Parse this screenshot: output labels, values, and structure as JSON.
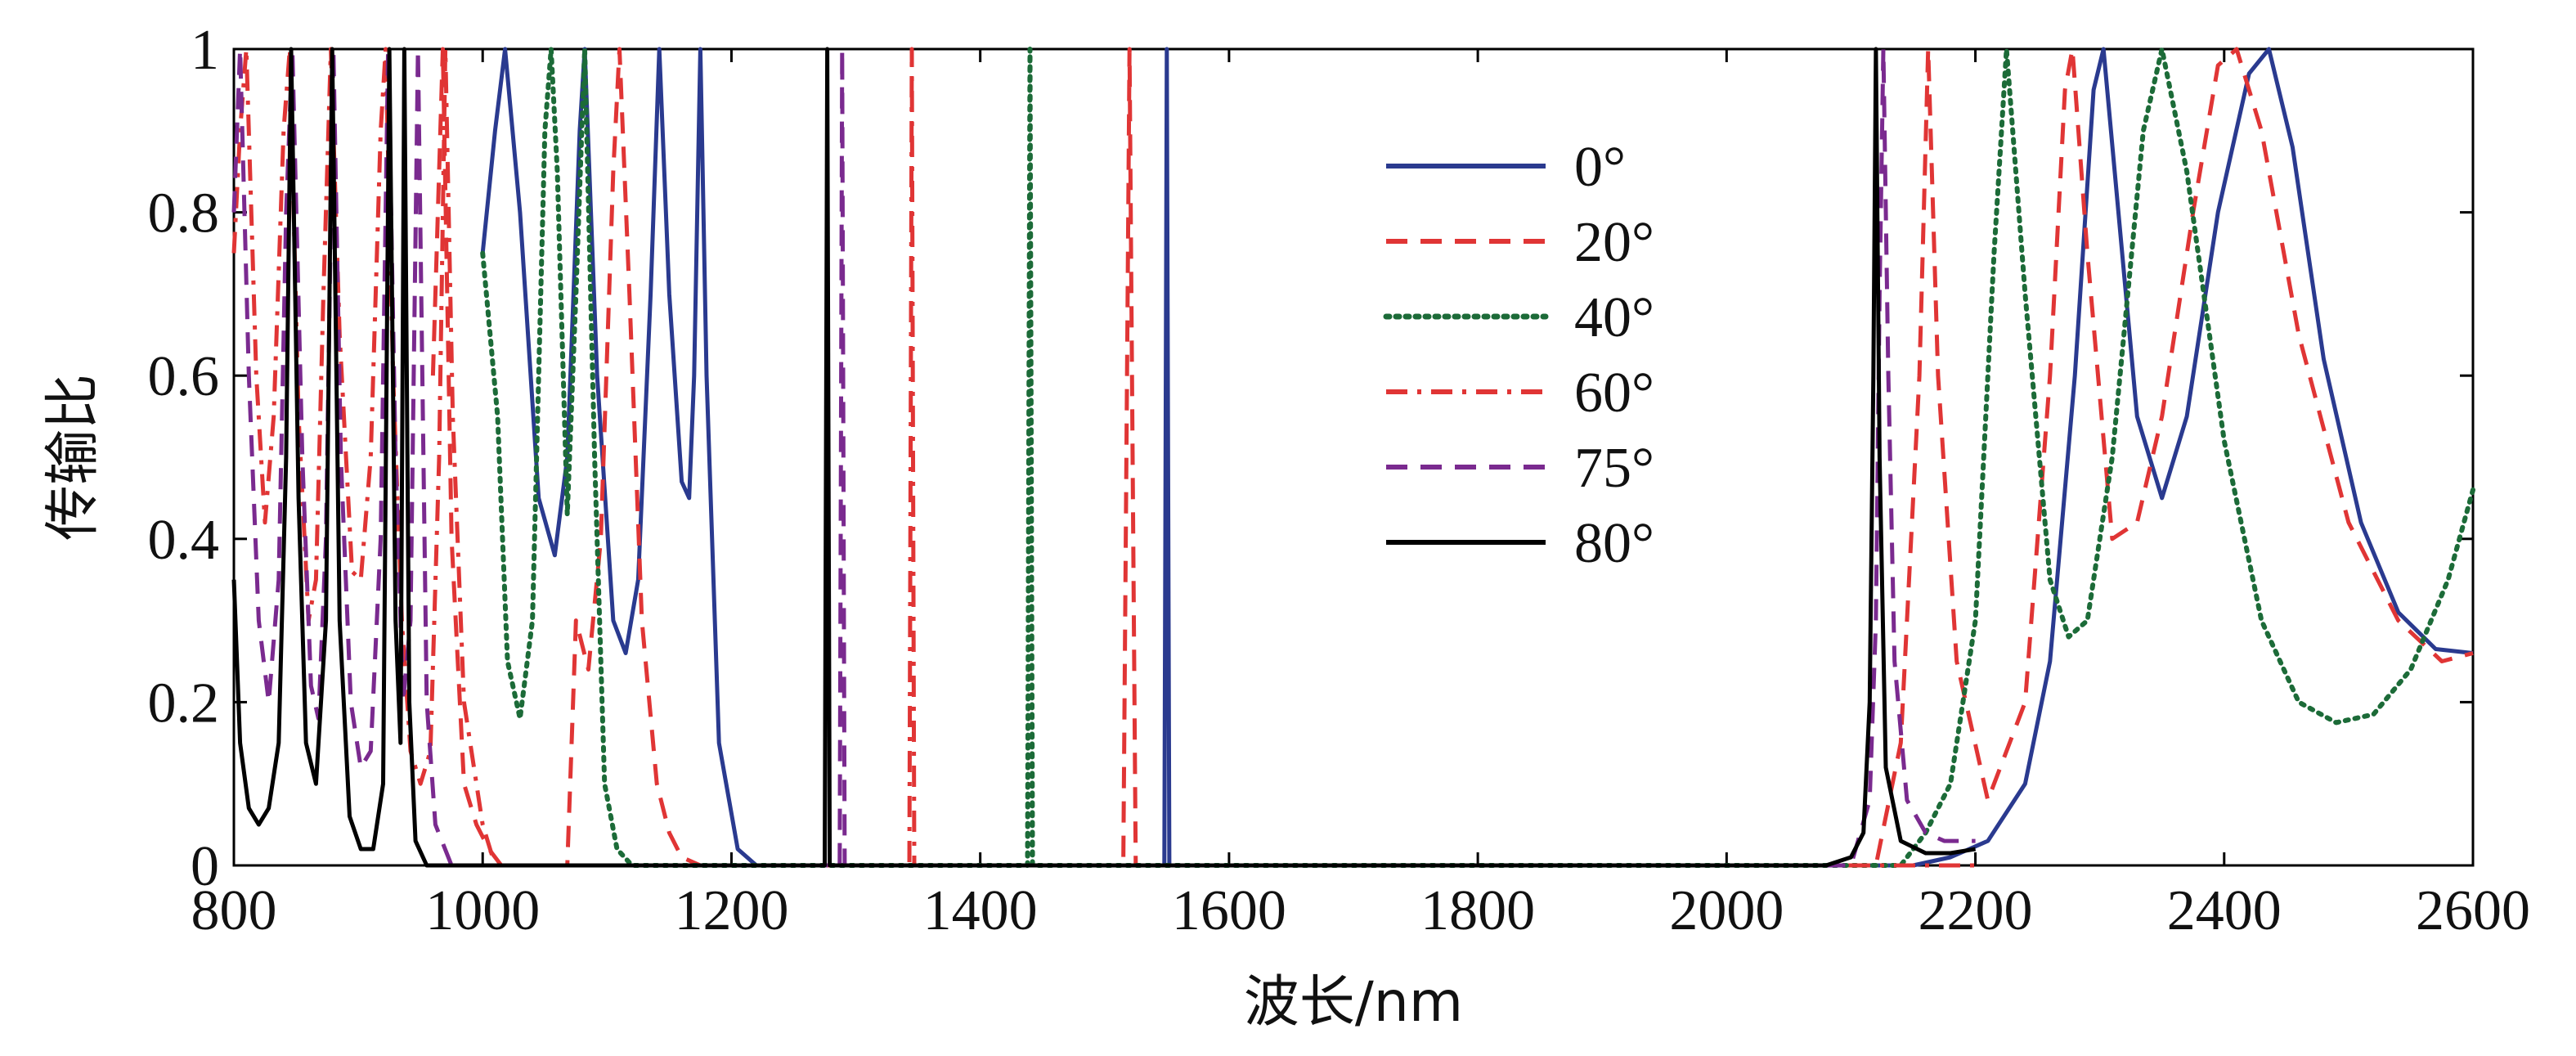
{
  "chart_data": {
    "type": "line",
    "title": "",
    "xlabel": "波长/nm",
    "ylabel": "传输比",
    "xlim": [
      800,
      2600
    ],
    "ylim": [
      0,
      1
    ],
    "xticks": [
      "800",
      "1000",
      "1200",
      "1400",
      "1600",
      "1800",
      "2000",
      "2200",
      "2400",
      "2600"
    ],
    "yticks": [
      "0",
      "0.2",
      "0.4",
      "0.6",
      "0.8",
      "1"
    ],
    "grid": false,
    "legend_position": "top-center",
    "series": [
      {
        "name": "0°",
        "color": "#2a3a8f",
        "dash": "solid",
        "points": [
          [
            1000,
            0.75
          ],
          [
            1010,
            0.9
          ],
          [
            1018,
            1.0
          ],
          [
            1030,
            0.8
          ],
          [
            1045,
            0.45
          ],
          [
            1058,
            0.38
          ],
          [
            1068,
            0.5
          ],
          [
            1078,
            0.9
          ],
          [
            1082,
            1.0
          ],
          [
            1092,
            0.6
          ],
          [
            1105,
            0.3
          ],
          [
            1115,
            0.26
          ],
          [
            1125,
            0.35
          ],
          [
            1135,
            0.7
          ],
          [
            1142,
            1.0
          ],
          [
            1150,
            0.7
          ],
          [
            1160,
            0.47
          ],
          [
            1166,
            0.45
          ],
          [
            1170,
            0.6
          ],
          [
            1175,
            1.0
          ],
          [
            1180,
            0.6
          ],
          [
            1190,
            0.15
          ],
          [
            1205,
            0.02
          ],
          [
            1220,
            0
          ],
          [
            1548,
            0
          ],
          [
            1550,
            1.0
          ],
          [
            1552,
            0
          ],
          [
            2150,
            0
          ],
          [
            2180,
            0.01
          ],
          [
            2210,
            0.03
          ],
          [
            2240,
            0.1
          ],
          [
            2260,
            0.25
          ],
          [
            2280,
            0.6
          ],
          [
            2295,
            0.95
          ],
          [
            2303,
            1.0
          ],
          [
            2312,
            0.85
          ],
          [
            2330,
            0.55
          ],
          [
            2350,
            0.45
          ],
          [
            2370,
            0.55
          ],
          [
            2395,
            0.8
          ],
          [
            2420,
            0.97
          ],
          [
            2436,
            1.0
          ],
          [
            2455,
            0.88
          ],
          [
            2480,
            0.62
          ],
          [
            2510,
            0.42
          ],
          [
            2540,
            0.31
          ],
          [
            2570,
            0.265
          ],
          [
            2600,
            0.26
          ]
        ]
      },
      {
        "name": "20°",
        "color": "#e03535",
        "dash": "dashed",
        "points": [
          [
            960,
            0.6
          ],
          [
            968,
            1.0
          ],
          [
            975,
            0.4
          ],
          [
            985,
            0.1
          ],
          [
            995,
            0.05
          ],
          [
            1005,
            0.02
          ],
          [
            1015,
            0
          ],
          [
            1068,
            0
          ],
          [
            1075,
            0.3
          ],
          [
            1085,
            0.24
          ],
          [
            1095,
            0.4
          ],
          [
            1105,
            0.85
          ],
          [
            1110,
            1.0
          ],
          [
            1118,
            0.7
          ],
          [
            1128,
            0.3
          ],
          [
            1140,
            0.1
          ],
          [
            1150,
            0.04
          ],
          [
            1160,
            0.01
          ],
          [
            1175,
            0
          ],
          [
            1515,
            0
          ],
          [
            1520,
            1.0
          ],
          [
            1525,
            0
          ],
          [
            2120,
            0
          ],
          [
            2140,
            0.15
          ],
          [
            2155,
            0.6
          ],
          [
            2162,
            1.0
          ],
          [
            2170,
            0.6
          ],
          [
            2185,
            0.25
          ],
          [
            2210,
            0.08
          ],
          [
            2240,
            0.2
          ],
          [
            2260,
            0.6
          ],
          [
            2272,
            0.95
          ],
          [
            2278,
            1.0
          ],
          [
            2290,
            0.75
          ],
          [
            2310,
            0.4
          ],
          [
            2330,
            0.42
          ],
          [
            2350,
            0.55
          ],
          [
            2375,
            0.8
          ],
          [
            2395,
            0.98
          ],
          [
            2410,
            1.0
          ],
          [
            2430,
            0.9
          ],
          [
            2460,
            0.65
          ],
          [
            2500,
            0.42
          ],
          [
            2540,
            0.3
          ],
          [
            2575,
            0.25
          ],
          [
            2600,
            0.26
          ]
        ]
      },
      {
        "name": "40°",
        "color": "#1c6b38",
        "dash": "dotted",
        "points": [
          [
            1000,
            0.75
          ],
          [
            1012,
            0.55
          ],
          [
            1020,
            0.25
          ],
          [
            1030,
            0.18
          ],
          [
            1040,
            0.3
          ],
          [
            1050,
            0.9
          ],
          [
            1055,
            1.0
          ],
          [
            1060,
            0.85
          ],
          [
            1068,
            0.43
          ],
          [
            1075,
            0.7
          ],
          [
            1082,
            1.0
          ],
          [
            1090,
            0.5
          ],
          [
            1098,
            0.1
          ],
          [
            1108,
            0.02
          ],
          [
            1120,
            0
          ],
          [
            1438,
            0
          ],
          [
            1440,
            1.0
          ],
          [
            1442,
            0
          ],
          [
            2140,
            0
          ],
          [
            2160,
            0.04
          ],
          [
            2180,
            0.1
          ],
          [
            2200,
            0.3
          ],
          [
            2215,
            0.75
          ],
          [
            2225,
            1.0
          ],
          [
            2240,
            0.7
          ],
          [
            2260,
            0.35
          ],
          [
            2275,
            0.28
          ],
          [
            2290,
            0.3
          ],
          [
            2310,
            0.5
          ],
          [
            2335,
            0.9
          ],
          [
            2350,
            1.0
          ],
          [
            2370,
            0.85
          ],
          [
            2400,
            0.52
          ],
          [
            2430,
            0.3
          ],
          [
            2460,
            0.2
          ],
          [
            2490,
            0.175
          ],
          [
            2520,
            0.185
          ],
          [
            2550,
            0.24
          ],
          [
            2580,
            0.35
          ],
          [
            2600,
            0.46
          ]
        ]
      },
      {
        "name": "60°",
        "color": "#e03535",
        "dash": "dashdot",
        "points": [
          [
            800,
            0.75
          ],
          [
            805,
            0.9
          ],
          [
            810,
            1.0
          ],
          [
            818,
            0.6
          ],
          [
            825,
            0.42
          ],
          [
            832,
            0.55
          ],
          [
            840,
            0.9
          ],
          [
            845,
            1.0
          ],
          [
            852,
            0.55
          ],
          [
            860,
            0.3
          ],
          [
            866,
            0.35
          ],
          [
            872,
            0.7
          ],
          [
            878,
            1.0
          ],
          [
            885,
            0.65
          ],
          [
            895,
            0.36
          ],
          [
            902,
            0.35
          ],
          [
            910,
            0.5
          ],
          [
            918,
            0.9
          ],
          [
            922,
            1.0
          ],
          [
            928,
            0.6
          ],
          [
            935,
            0.3
          ],
          [
            942,
            0.14
          ],
          [
            950,
            0.1
          ],
          [
            958,
            0.14
          ],
          [
            965,
            0.5
          ],
          [
            970,
            1.0
          ],
          [
            976,
            0.55
          ],
          [
            985,
            0.2
          ],
          [
            1000,
            0.05
          ],
          [
            1010,
            0
          ],
          [
            1343,
            0
          ],
          [
            1345,
            1.0
          ],
          [
            1347,
            0
          ],
          [
            2200,
            0
          ]
        ]
      },
      {
        "name": "75°",
        "color": "#7a2a8f",
        "dash": "dashed",
        "points": [
          [
            800,
            0.8
          ],
          [
            805,
            1.0
          ],
          [
            812,
            0.6
          ],
          [
            820,
            0.3
          ],
          [
            828,
            0.2
          ],
          [
            836,
            0.35
          ],
          [
            842,
            0.8
          ],
          [
            847,
            1.0
          ],
          [
            855,
            0.5
          ],
          [
            862,
            0.22
          ],
          [
            868,
            0.18
          ],
          [
            874,
            0.4
          ],
          [
            880,
            1.0
          ],
          [
            886,
            0.5
          ],
          [
            894,
            0.2
          ],
          [
            902,
            0.12
          ],
          [
            910,
            0.14
          ],
          [
            918,
            0.4
          ],
          [
            924,
            1.0
          ],
          [
            930,
            0.5
          ],
          [
            936,
            0.2
          ],
          [
            942,
            0.3
          ],
          [
            948,
            1.0
          ],
          [
            955,
            0.2
          ],
          [
            962,
            0.05
          ],
          [
            975,
            0
          ],
          [
            1287,
            0
          ],
          [
            1289,
            1.0
          ],
          [
            1291,
            0
          ],
          [
            2100,
            0
          ],
          [
            2115,
            0.08
          ],
          [
            2120,
            0.3
          ],
          [
            2123,
            0.7
          ],
          [
            2126,
            1.0
          ],
          [
            2130,
            0.6
          ],
          [
            2135,
            0.25
          ],
          [
            2145,
            0.08
          ],
          [
            2160,
            0.04
          ],
          [
            2175,
            0.03
          ],
          [
            2200,
            0.03
          ]
        ]
      },
      {
        "name": "80°",
        "color": "#000000",
        "dash": "solid",
        "points": [
          [
            800,
            0.35
          ],
          [
            805,
            0.15
          ],
          [
            812,
            0.07
          ],
          [
            820,
            0.05
          ],
          [
            828,
            0.07
          ],
          [
            836,
            0.15
          ],
          [
            842,
            0.5
          ],
          [
            846,
            1.0
          ],
          [
            852,
            0.45
          ],
          [
            858,
            0.15
          ],
          [
            866,
            0.1
          ],
          [
            874,
            0.3
          ],
          [
            879,
            1.0
          ],
          [
            885,
            0.3
          ],
          [
            893,
            0.06
          ],
          [
            902,
            0.02
          ],
          [
            912,
            0.02
          ],
          [
            920,
            0.1
          ],
          [
            925,
            1.0
          ],
          [
            930,
            0.3
          ],
          [
            934,
            0.15
          ],
          [
            937,
            1.0
          ],
          [
            941,
            0.2
          ],
          [
            946,
            0.03
          ],
          [
            955,
            0
          ],
          [
            1275,
            0
          ],
          [
            1277,
            1.0
          ],
          [
            1279,
            0
          ],
          [
            2080,
            0
          ],
          [
            2100,
            0.01
          ],
          [
            2110,
            0.04
          ],
          [
            2115,
            0.2
          ],
          [
            2118,
            0.6
          ],
          [
            2120,
            1.0
          ],
          [
            2123,
            0.5
          ],
          [
            2128,
            0.12
          ],
          [
            2140,
            0.03
          ],
          [
            2160,
            0.015
          ],
          [
            2180,
            0.015
          ],
          [
            2200,
            0.02
          ]
        ]
      }
    ]
  }
}
